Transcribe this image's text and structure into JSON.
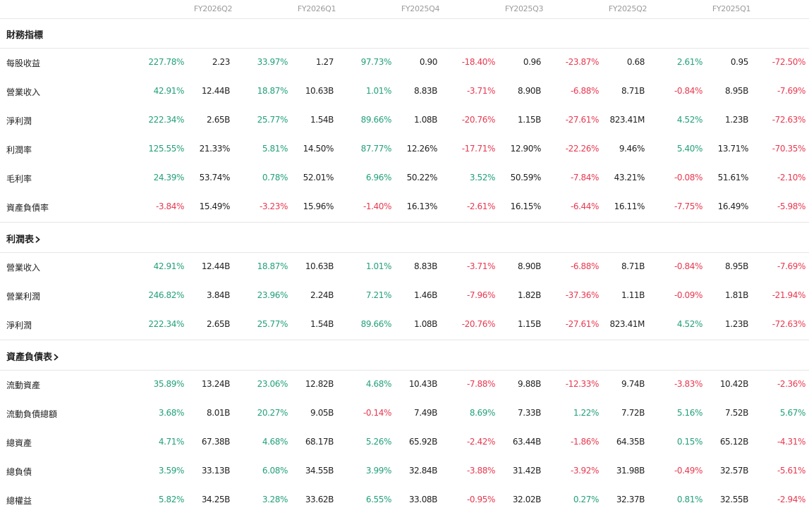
{
  "header": {
    "periods": [
      "FY2026Q2",
      "FY2026Q1",
      "FY2025Q4",
      "FY2025Q3",
      "FY2025Q2",
      "FY2025Q1"
    ]
  },
  "sections": [
    {
      "title": "財務指標",
      "has_chevron": false,
      "rows": [
        {
          "label": "每股收益",
          "cells": [
            {
              "pct": "227.78%",
              "val": "2.23"
            },
            {
              "pct": "33.97%",
              "val": "1.27"
            },
            {
              "pct": "97.73%",
              "val": "0.90"
            },
            {
              "pct": "-18.40%",
              "val": "0.96"
            },
            {
              "pct": "-23.87%",
              "val": "0.68"
            },
            {
              "pct": "2.61%",
              "val": "0.95"
            },
            {
              "pct": "-72.50%",
              "val": ""
            }
          ]
        },
        {
          "label": "營業收入",
          "cells": [
            {
              "pct": "42.91%",
              "val": "12.44B"
            },
            {
              "pct": "18.87%",
              "val": "10.63B"
            },
            {
              "pct": "1.01%",
              "val": "8.83B"
            },
            {
              "pct": "-3.71%",
              "val": "8.90B"
            },
            {
              "pct": "-6.88%",
              "val": "8.71B"
            },
            {
              "pct": "-0.84%",
              "val": "8.95B"
            },
            {
              "pct": "-7.69%",
              "val": ""
            }
          ]
        },
        {
          "label": "淨利潤",
          "cells": [
            {
              "pct": "222.34%",
              "val": "2.65B"
            },
            {
              "pct": "25.77%",
              "val": "1.54B"
            },
            {
              "pct": "89.66%",
              "val": "1.08B"
            },
            {
              "pct": "-20.76%",
              "val": "1.15B"
            },
            {
              "pct": "-27.61%",
              "val": "823.41M"
            },
            {
              "pct": "4.52%",
              "val": "1.23B"
            },
            {
              "pct": "-72.63%",
              "val": ""
            }
          ]
        },
        {
          "label": "利潤率",
          "cells": [
            {
              "pct": "125.55%",
              "val": "21.33%"
            },
            {
              "pct": "5.81%",
              "val": "14.50%"
            },
            {
              "pct": "87.77%",
              "val": "12.26%"
            },
            {
              "pct": "-17.71%",
              "val": "12.90%"
            },
            {
              "pct": "-22.26%",
              "val": "9.46%"
            },
            {
              "pct": "5.40%",
              "val": "13.71%"
            },
            {
              "pct": "-70.35%",
              "val": ""
            }
          ]
        },
        {
          "label": "毛利率",
          "cells": [
            {
              "pct": "24.39%",
              "val": "53.74%"
            },
            {
              "pct": "0.78%",
              "val": "52.01%"
            },
            {
              "pct": "6.96%",
              "val": "50.22%"
            },
            {
              "pct": "3.52%",
              "val": "50.59%"
            },
            {
              "pct": "-7.84%",
              "val": "43.21%"
            },
            {
              "pct": "-0.08%",
              "val": "51.61%"
            },
            {
              "pct": "-2.10%",
              "val": ""
            }
          ]
        },
        {
          "label": "資產負債率",
          "cells": [
            {
              "pct": "-3.84%",
              "val": "15.49%"
            },
            {
              "pct": "-3.23%",
              "val": "15.96%"
            },
            {
              "pct": "-1.40%",
              "val": "16.13%"
            },
            {
              "pct": "-2.61%",
              "val": "16.15%"
            },
            {
              "pct": "-6.44%",
              "val": "16.11%"
            },
            {
              "pct": "-7.75%",
              "val": "16.49%"
            },
            {
              "pct": "-5.98%",
              "val": ""
            }
          ]
        }
      ]
    },
    {
      "title": "利潤表",
      "has_chevron": true,
      "rows": [
        {
          "label": "營業收入",
          "cells": [
            {
              "pct": "42.91%",
              "val": "12.44B"
            },
            {
              "pct": "18.87%",
              "val": "10.63B"
            },
            {
              "pct": "1.01%",
              "val": "8.83B"
            },
            {
              "pct": "-3.71%",
              "val": "8.90B"
            },
            {
              "pct": "-6.88%",
              "val": "8.71B"
            },
            {
              "pct": "-0.84%",
              "val": "8.95B"
            },
            {
              "pct": "-7.69%",
              "val": ""
            }
          ]
        },
        {
          "label": "營業利潤",
          "cells": [
            {
              "pct": "246.82%",
              "val": "3.84B"
            },
            {
              "pct": "23.96%",
              "val": "2.24B"
            },
            {
              "pct": "7.21%",
              "val": "1.46B"
            },
            {
              "pct": "-7.96%",
              "val": "1.82B"
            },
            {
              "pct": "-37.36%",
              "val": "1.11B"
            },
            {
              "pct": "-0.09%",
              "val": "1.81B"
            },
            {
              "pct": "-21.94%",
              "val": ""
            }
          ]
        },
        {
          "label": "淨利潤",
          "cells": [
            {
              "pct": "222.34%",
              "val": "2.65B"
            },
            {
              "pct": "25.77%",
              "val": "1.54B"
            },
            {
              "pct": "89.66%",
              "val": "1.08B"
            },
            {
              "pct": "-20.76%",
              "val": "1.15B"
            },
            {
              "pct": "-27.61%",
              "val": "823.41M"
            },
            {
              "pct": "4.52%",
              "val": "1.23B"
            },
            {
              "pct": "-72.63%",
              "val": ""
            }
          ]
        }
      ]
    },
    {
      "title": "資產負債表",
      "has_chevron": true,
      "rows": [
        {
          "label": "流動資產",
          "cells": [
            {
              "pct": "35.89%",
              "val": "13.24B"
            },
            {
              "pct": "23.06%",
              "val": "12.82B"
            },
            {
              "pct": "4.68%",
              "val": "10.43B"
            },
            {
              "pct": "-7.88%",
              "val": "9.88B"
            },
            {
              "pct": "-12.33%",
              "val": "9.74B"
            },
            {
              "pct": "-3.83%",
              "val": "10.42B"
            },
            {
              "pct": "-2.36%",
              "val": ""
            }
          ]
        },
        {
          "label": "流動負債總額",
          "cells": [
            {
              "pct": "3.68%",
              "val": "8.01B"
            },
            {
              "pct": "20.27%",
              "val": "9.05B"
            },
            {
              "pct": "-0.14%",
              "val": "7.49B"
            },
            {
              "pct": "8.69%",
              "val": "7.33B"
            },
            {
              "pct": "1.22%",
              "val": "7.72B"
            },
            {
              "pct": "5.16%",
              "val": "7.52B"
            },
            {
              "pct": "5.67%",
              "val": ""
            }
          ]
        },
        {
          "label": "總資產",
          "cells": [
            {
              "pct": "4.71%",
              "val": "67.38B"
            },
            {
              "pct": "4.68%",
              "val": "68.17B"
            },
            {
              "pct": "5.26%",
              "val": "65.92B"
            },
            {
              "pct": "-2.42%",
              "val": "63.44B"
            },
            {
              "pct": "-1.86%",
              "val": "64.35B"
            },
            {
              "pct": "0.15%",
              "val": "65.12B"
            },
            {
              "pct": "-4.31%",
              "val": ""
            }
          ]
        },
        {
          "label": "總負債",
          "cells": [
            {
              "pct": "3.59%",
              "val": "33.13B"
            },
            {
              "pct": "6.08%",
              "val": "34.55B"
            },
            {
              "pct": "3.99%",
              "val": "32.84B"
            },
            {
              "pct": "-3.88%",
              "val": "31.42B"
            },
            {
              "pct": "-3.92%",
              "val": "31.98B"
            },
            {
              "pct": "-0.49%",
              "val": "32.57B"
            },
            {
              "pct": "-5.61%",
              "val": ""
            }
          ]
        },
        {
          "label": "總權益",
          "cells": [
            {
              "pct": "5.82%",
              "val": "34.25B"
            },
            {
              "pct": "3.28%",
              "val": "33.62B"
            },
            {
              "pct": "6.55%",
              "val": "33.08B"
            },
            {
              "pct": "-0.95%",
              "val": "32.02B"
            },
            {
              "pct": "0.27%",
              "val": "32.37B"
            },
            {
              "pct": "0.81%",
              "val": "32.55B"
            },
            {
              "pct": "-2.94%",
              "val": ""
            }
          ]
        }
      ]
    }
  ],
  "colors": {
    "up": "#22a07a",
    "down": "#e8384f",
    "divider": "#e6e6e6",
    "header_text": "#9a9a9a"
  }
}
